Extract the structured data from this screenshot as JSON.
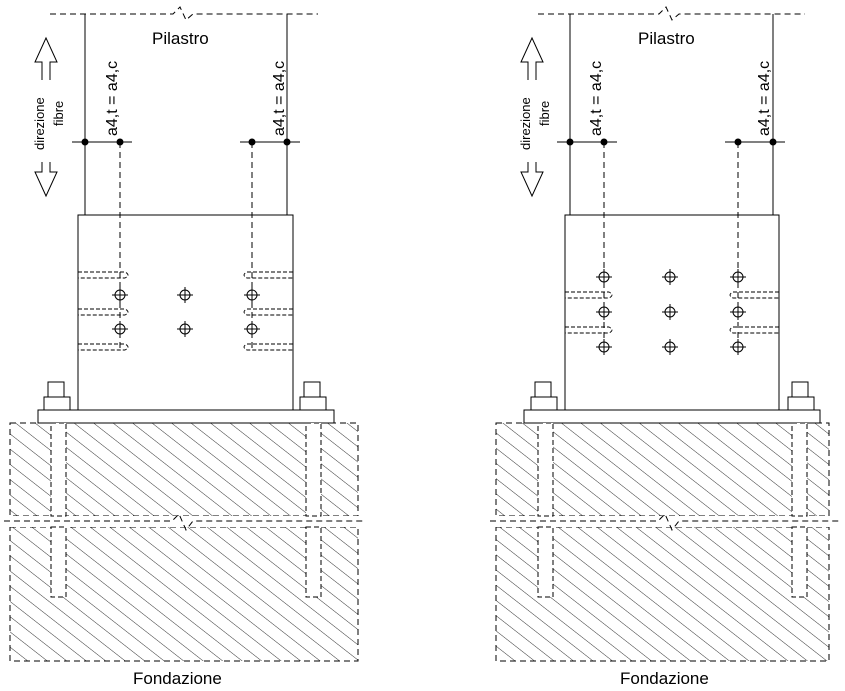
{
  "labels": {
    "column": "Pilastro",
    "foundation": "Fondazione",
    "edge_distance": "a4,t = a4,c",
    "fiber_direction_line1": "direzione",
    "fiber_direction_line2": "fibre"
  },
  "details": [
    {
      "fastener_rows": 2,
      "fastener_columns": 3,
      "fastener_columns_cut_by_slots": [
        "left",
        "right"
      ],
      "slot_pairs": 2,
      "has_fiber_direction_arrow": true
    },
    {
      "fastener_rows": 3,
      "fastener_columns": 3,
      "fastener_columns_cut_by_slots": [
        "left",
        "right"
      ],
      "slot_pairs": 2,
      "has_fiber_direction_arrow": true
    }
  ],
  "style": {
    "line_color": "#000000",
    "background": "#ffffff"
  }
}
